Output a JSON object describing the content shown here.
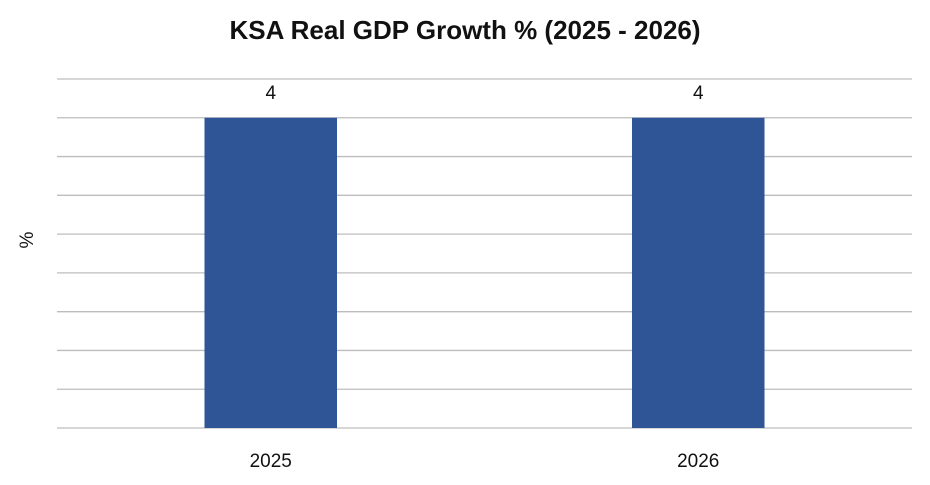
{
  "chart_data": {
    "type": "bar",
    "title": "KSA Real GDP Growth % (2025 - 2026)",
    "y_label": "%",
    "categories": [
      "2025",
      "2026"
    ],
    "values": [
      4,
      4
    ],
    "color": "#2f5597",
    "ylim": [
      0,
      4.5
    ],
    "yticks": [
      0,
      0.5,
      1,
      1.5,
      2,
      2.5,
      3,
      3.5,
      4,
      4.5
    ],
    "grid": true
  }
}
